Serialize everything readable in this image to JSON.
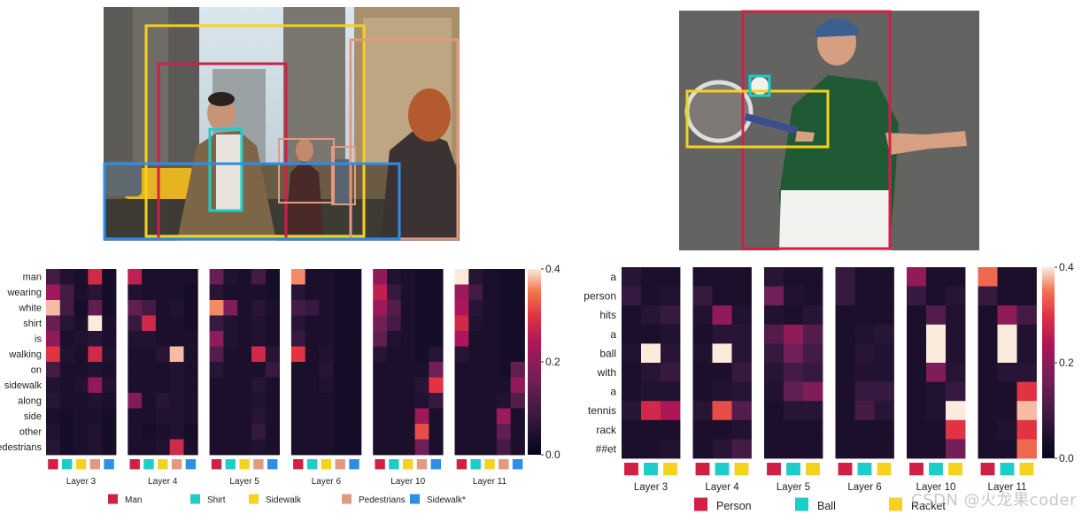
{
  "watermark": "CSDN @火龙果coder",
  "colors": {
    "Man": "#d21f46",
    "Shirt": "#1dcdc8",
    "Sidewalk": "#f4d21e",
    "Pedestrians": "#e19a7f",
    "Sidewalk*": "#2d8ee8",
    "Person": "#d21f46",
    "Ball": "#1dcdc8",
    "Racket": "#f4d21e"
  },
  "chart_data": [
    {
      "type": "heatmap",
      "panel": "left",
      "colorscale": "rocket",
      "zlim": [
        0,
        0.4
      ],
      "colorbar_ticks": [
        "0.0",
        "0.2",
        "0.4"
      ],
      "rows": [
        "man",
        "wearing",
        "white",
        "shirt",
        "is",
        "walking",
        "on",
        "sidewalk",
        "along",
        "side",
        "other",
        "pedestrians"
      ],
      "legend": [
        {
          "name": "Man",
          "color_key": "Man"
        },
        {
          "name": "Shirt",
          "color_key": "Shirt"
        },
        {
          "name": "Sidewalk",
          "color_key": "Sidewalk"
        },
        {
          "name": "Pedestrians",
          "color_key": "Pedestrians"
        },
        {
          "name": "Sidewalk*",
          "color_key": "Sidewalk*"
        }
      ],
      "columns": [
        "Man",
        "Shirt",
        "Sidewalk",
        "Pedestrians",
        "Sidewalk*"
      ],
      "layers": [
        {
          "name": "Layer 3",
          "values": [
            [
              0.1,
              0.05,
              0.04,
              0.28,
              0.03
            ],
            [
              0.22,
              0.1,
              0.04,
              0.06,
              0.03
            ],
            [
              0.38,
              0.1,
              0.03,
              0.14,
              0.03
            ],
            [
              0.15,
              0.06,
              0.04,
              0.4,
              0.04
            ],
            [
              0.2,
              0.04,
              0.05,
              0.06,
              0.04
            ],
            [
              0.3,
              0.05,
              0.04,
              0.28,
              0.05
            ],
            [
              0.1,
              0.04,
              0.04,
              0.05,
              0.04
            ],
            [
              0.05,
              0.04,
              0.05,
              0.2,
              0.05
            ],
            [
              0.06,
              0.04,
              0.04,
              0.05,
              0.04
            ],
            [
              0.04,
              0.03,
              0.04,
              0.04,
              0.03
            ],
            [
              0.05,
              0.03,
              0.04,
              0.05,
              0.03
            ],
            [
              0.06,
              0.03,
              0.04,
              0.05,
              0.03
            ]
          ]
        },
        {
          "name": "Layer 4",
          "values": [
            [
              0.26,
              0.04,
              0.04,
              0.04,
              0.04
            ],
            [
              0.05,
              0.04,
              0.04,
              0.04,
              0.03
            ],
            [
              0.14,
              0.1,
              0.04,
              0.05,
              0.03
            ],
            [
              0.08,
              0.28,
              0.04,
              0.04,
              0.03
            ],
            [
              0.05,
              0.05,
              0.04,
              0.04,
              0.04
            ],
            [
              0.04,
              0.04,
              0.06,
              0.38,
              0.04
            ],
            [
              0.04,
              0.04,
              0.04,
              0.05,
              0.04
            ],
            [
              0.04,
              0.04,
              0.04,
              0.05,
              0.04
            ],
            [
              0.18,
              0.04,
              0.06,
              0.05,
              0.04
            ],
            [
              0.04,
              0.04,
              0.05,
              0.05,
              0.04
            ],
            [
              0.04,
              0.03,
              0.04,
              0.05,
              0.03
            ],
            [
              0.04,
              0.04,
              0.05,
              0.28,
              0.04
            ]
          ]
        },
        {
          "name": "Layer 5",
          "values": [
            [
              0.15,
              0.05,
              0.04,
              0.1,
              0.03
            ],
            [
              0.06,
              0.04,
              0.04,
              0.04,
              0.03
            ],
            [
              0.36,
              0.18,
              0.04,
              0.06,
              0.04
            ],
            [
              0.08,
              0.05,
              0.04,
              0.05,
              0.04
            ],
            [
              0.2,
              0.05,
              0.04,
              0.05,
              0.04
            ],
            [
              0.12,
              0.04,
              0.04,
              0.28,
              0.06
            ],
            [
              0.06,
              0.04,
              0.04,
              0.04,
              0.08
            ],
            [
              0.04,
              0.04,
              0.04,
              0.06,
              0.04
            ],
            [
              0.04,
              0.04,
              0.04,
              0.05,
              0.04
            ],
            [
              0.04,
              0.04,
              0.04,
              0.06,
              0.04
            ],
            [
              0.04,
              0.04,
              0.04,
              0.08,
              0.04
            ],
            [
              0.04,
              0.04,
              0.04,
              0.05,
              0.04
            ]
          ]
        },
        {
          "name": "Layer 6",
          "values": [
            [
              0.36,
              0.04,
              0.04,
              0.03,
              0.03
            ],
            [
              0.06,
              0.04,
              0.04,
              0.03,
              0.03
            ],
            [
              0.1,
              0.08,
              0.04,
              0.03,
              0.03
            ],
            [
              0.06,
              0.04,
              0.04,
              0.03,
              0.03
            ],
            [
              0.08,
              0.04,
              0.04,
              0.03,
              0.03
            ],
            [
              0.3,
              0.04,
              0.05,
              0.03,
              0.03
            ],
            [
              0.04,
              0.04,
              0.06,
              0.03,
              0.03
            ],
            [
              0.04,
              0.04,
              0.05,
              0.03,
              0.03
            ],
            [
              0.04,
              0.04,
              0.04,
              0.03,
              0.03
            ],
            [
              0.04,
              0.04,
              0.04,
              0.03,
              0.03
            ],
            [
              0.04,
              0.04,
              0.04,
              0.03,
              0.03
            ],
            [
              0.04,
              0.04,
              0.04,
              0.03,
              0.03
            ]
          ]
        },
        {
          "name": "Layer 10",
          "values": [
            [
              0.2,
              0.05,
              0.04,
              0.03,
              0.03
            ],
            [
              0.26,
              0.08,
              0.04,
              0.03,
              0.03
            ],
            [
              0.22,
              0.12,
              0.04,
              0.03,
              0.03
            ],
            [
              0.16,
              0.1,
              0.04,
              0.03,
              0.03
            ],
            [
              0.14,
              0.05,
              0.04,
              0.03,
              0.03
            ],
            [
              0.06,
              0.04,
              0.04,
              0.03,
              0.06
            ],
            [
              0.04,
              0.04,
              0.04,
              0.04,
              0.16
            ],
            [
              0.04,
              0.04,
              0.04,
              0.06,
              0.3
            ],
            [
              0.04,
              0.04,
              0.04,
              0.05,
              0.08
            ],
            [
              0.04,
              0.04,
              0.04,
              0.22,
              0.04
            ],
            [
              0.04,
              0.04,
              0.04,
              0.32,
              0.04
            ],
            [
              0.04,
              0.04,
              0.04,
              0.16,
              0.04
            ]
          ]
        },
        {
          "name": "Layer 11",
          "values": [
            [
              0.4,
              0.06,
              0.04,
              0.03,
              0.03
            ],
            [
              0.22,
              0.1,
              0.04,
              0.03,
              0.03
            ],
            [
              0.24,
              0.06,
              0.04,
              0.03,
              0.03
            ],
            [
              0.28,
              0.05,
              0.04,
              0.03,
              0.03
            ],
            [
              0.24,
              0.04,
              0.04,
              0.03,
              0.03
            ],
            [
              0.06,
              0.04,
              0.04,
              0.03,
              0.03
            ],
            [
              0.04,
              0.04,
              0.04,
              0.03,
              0.14
            ],
            [
              0.04,
              0.04,
              0.04,
              0.04,
              0.2
            ],
            [
              0.04,
              0.04,
              0.04,
              0.05,
              0.12
            ],
            [
              0.04,
              0.04,
              0.04,
              0.22,
              0.04
            ],
            [
              0.04,
              0.04,
              0.04,
              0.14,
              0.04
            ],
            [
              0.04,
              0.04,
              0.04,
              0.1,
              0.04
            ]
          ]
        }
      ]
    },
    {
      "type": "heatmap",
      "panel": "right",
      "colorscale": "rocket",
      "zlim": [
        0,
        0.4
      ],
      "colorbar_ticks": [
        "0.0",
        "0.2",
        "0.4"
      ],
      "rows": [
        "a",
        "person",
        "hits",
        "a",
        "ball",
        "with",
        "a",
        "tennis",
        "rack",
        "##et"
      ],
      "legend": [
        {
          "name": "Person",
          "color_key": "Person"
        },
        {
          "name": "Ball",
          "color_key": "Ball"
        },
        {
          "name": "Racket",
          "color_key": "Racket"
        }
      ],
      "columns": [
        "Person",
        "Ball",
        "Racket"
      ],
      "layers": [
        {
          "name": "Layer 3",
          "values": [
            [
              0.06,
              0.04,
              0.04
            ],
            [
              0.08,
              0.04,
              0.05
            ],
            [
              0.04,
              0.06,
              0.08
            ],
            [
              0.04,
              0.04,
              0.05
            ],
            [
              0.05,
              0.4,
              0.06
            ],
            [
              0.04,
              0.06,
              0.08
            ],
            [
              0.04,
              0.05,
              0.05
            ],
            [
              0.06,
              0.28,
              0.24
            ],
            [
              0.04,
              0.04,
              0.04
            ],
            [
              0.04,
              0.04,
              0.05
            ]
          ]
        },
        {
          "name": "Layer 4",
          "values": [
            [
              0.04,
              0.04,
              0.04
            ],
            [
              0.08,
              0.04,
              0.04
            ],
            [
              0.05,
              0.2,
              0.05
            ],
            [
              0.04,
              0.06,
              0.06
            ],
            [
              0.05,
              0.4,
              0.06
            ],
            [
              0.04,
              0.04,
              0.08
            ],
            [
              0.04,
              0.05,
              0.06
            ],
            [
              0.06,
              0.32,
              0.12
            ],
            [
              0.04,
              0.04,
              0.05
            ],
            [
              0.04,
              0.06,
              0.1
            ]
          ]
        },
        {
          "name": "Layer 5",
          "values": [
            [
              0.06,
              0.04,
              0.04
            ],
            [
              0.16,
              0.05,
              0.04
            ],
            [
              0.05,
              0.04,
              0.06
            ],
            [
              0.12,
              0.2,
              0.12
            ],
            [
              0.08,
              0.16,
              0.1
            ],
            [
              0.06,
              0.1,
              0.08
            ],
            [
              0.05,
              0.14,
              0.18
            ],
            [
              0.04,
              0.06,
              0.06
            ],
            [
              0.04,
              0.04,
              0.04
            ],
            [
              0.04,
              0.04,
              0.04
            ]
          ]
        },
        {
          "name": "Layer 6",
          "values": [
            [
              0.08,
              0.04,
              0.04
            ],
            [
              0.08,
              0.04,
              0.04
            ],
            [
              0.04,
              0.04,
              0.04
            ],
            [
              0.04,
              0.05,
              0.06
            ],
            [
              0.04,
              0.06,
              0.05
            ],
            [
              0.04,
              0.05,
              0.05
            ],
            [
              0.04,
              0.08,
              0.08
            ],
            [
              0.04,
              0.1,
              0.06
            ],
            [
              0.04,
              0.04,
              0.04
            ],
            [
              0.04,
              0.04,
              0.04
            ]
          ]
        },
        {
          "name": "Layer 10",
          "values": [
            [
              0.2,
              0.04,
              0.04
            ],
            [
              0.08,
              0.04,
              0.06
            ],
            [
              0.04,
              0.12,
              0.05
            ],
            [
              0.04,
              0.4,
              0.05
            ],
            [
              0.04,
              0.4,
              0.05
            ],
            [
              0.04,
              0.18,
              0.06
            ],
            [
              0.04,
              0.05,
              0.08
            ],
            [
              0.04,
              0.05,
              0.4
            ],
            [
              0.04,
              0.04,
              0.3
            ],
            [
              0.04,
              0.04,
              0.16
            ]
          ]
        },
        {
          "name": "Layer 11",
          "values": [
            [
              0.34,
              0.04,
              0.04
            ],
            [
              0.08,
              0.04,
              0.04
            ],
            [
              0.04,
              0.2,
              0.1
            ],
            [
              0.04,
              0.4,
              0.05
            ],
            [
              0.04,
              0.4,
              0.05
            ],
            [
              0.04,
              0.06,
              0.06
            ],
            [
              0.04,
              0.04,
              0.3
            ],
            [
              0.04,
              0.04,
              0.38
            ],
            [
              0.04,
              0.05,
              0.3
            ],
            [
              0.04,
              0.04,
              0.34
            ]
          ]
        }
      ]
    }
  ]
}
